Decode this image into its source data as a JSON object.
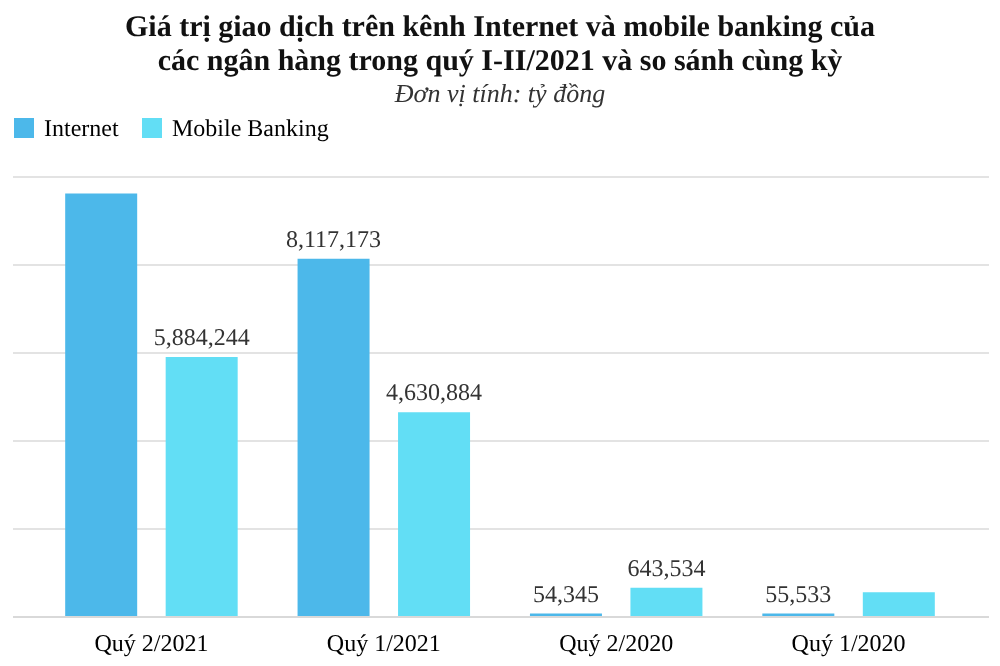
{
  "chart_data": {
    "type": "bar",
    "title": [
      "Giá trị giao dịch trên kênh Internet và mobile banking của",
      "các ngân hàng trong quý I-II/2021 và so sánh cùng kỳ"
    ],
    "subtitle": "Đơn vị tính: tỷ đồng",
    "categories": [
      "Quý 2/2021",
      "Quý 1/2021",
      "Quý 2/2020",
      "Quý 1/2020"
    ],
    "series": [
      {
        "name": "Internet",
        "color": "#4cb8ea",
        "values": [
          9600000,
          8117173,
          54345,
          55533
        ],
        "value_labels": [
          null,
          "8,117,173",
          "54,345",
          "55,533"
        ]
      },
      {
        "name": "Mobile Banking",
        "color": "#62def5",
        "values": [
          5884244,
          4630884,
          643534,
          540000
        ],
        "value_labels": [
          "5,884,244",
          "4,630,884",
          "643,534",
          null
        ]
      }
    ],
    "ylim": [
      0,
      10000000
    ],
    "yticks": [
      {
        "value": 0,
        "label": null
      },
      {
        "value": 2000000,
        "label": null
      },
      {
        "value": 4000000,
        "label": null
      },
      {
        "value": 6000000,
        "label": null
      },
      {
        "value": 8000000,
        "label": null
      },
      {
        "value": 10000000,
        "label": null
      }
    ],
    "tick_labels": "x",
    "grid": "y",
    "legend": "top"
  }
}
